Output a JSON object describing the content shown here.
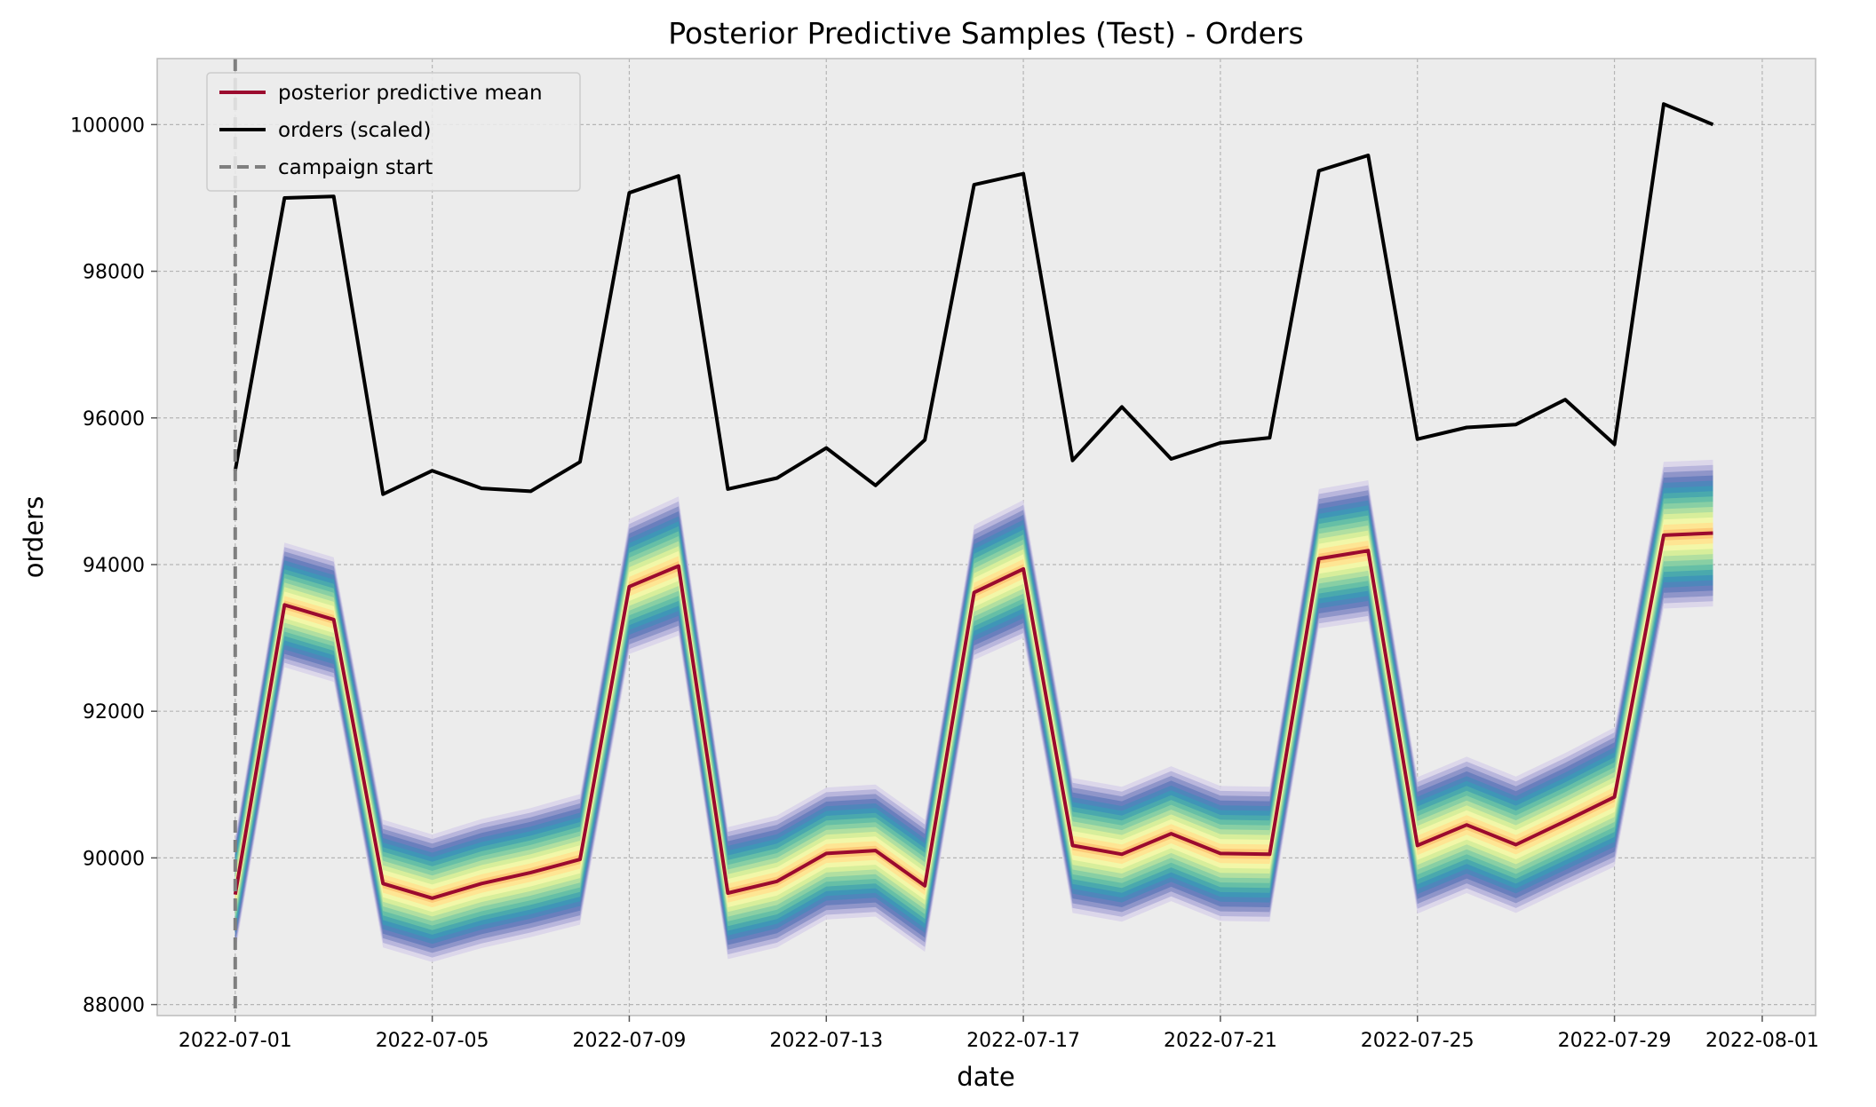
{
  "chart_data": {
    "type": "line",
    "title": "Posterior Predictive Samples (Test) - Orders",
    "xlabel": "date",
    "ylabel": "orders",
    "x_ticks": [
      "2022-07-01",
      "2022-07-05",
      "2022-07-09",
      "2022-07-13",
      "2022-07-17",
      "2022-07-21",
      "2022-07-25",
      "2022-07-29",
      "2022-08-01"
    ],
    "y_ticks": [
      "88000",
      "90000",
      "92000",
      "94000",
      "96000",
      "98000",
      "100000"
    ],
    "xlim": [
      "2022-06-29T10:00",
      "2022-08-02T02:00"
    ],
    "ylim": [
      87850,
      100900
    ],
    "grid": true,
    "legend_position": "top-left",
    "dates": [
      "2022-07-01",
      "2022-07-02",
      "2022-07-03",
      "2022-07-04",
      "2022-07-05",
      "2022-07-06",
      "2022-07-07",
      "2022-07-08",
      "2022-07-09",
      "2022-07-10",
      "2022-07-11",
      "2022-07-12",
      "2022-07-13",
      "2022-07-14",
      "2022-07-15",
      "2022-07-16",
      "2022-07-17",
      "2022-07-18",
      "2022-07-19",
      "2022-07-20",
      "2022-07-21",
      "2022-07-22",
      "2022-07-23",
      "2022-07-24",
      "2022-07-25",
      "2022-07-26",
      "2022-07-27",
      "2022-07-28",
      "2022-07-29",
      "2022-07-30",
      "2022-07-31"
    ],
    "series": [
      {
        "name": "posterior predictive mean",
        "color": "#9b0a2e",
        "values": [
          89500,
          93450,
          93250,
          89650,
          89450,
          89650,
          89800,
          89980,
          93700,
          93980,
          89520,
          89680,
          90060,
          90100,
          89620,
          93620,
          93940,
          90170,
          90050,
          90330,
          90060,
          90050,
          94080,
          94190,
          90170,
          90450,
          90180,
          90500,
          90830,
          94400,
          94430
        ]
      },
      {
        "name": "orders (scaled)",
        "color": "#000000",
        "values": [
          95280,
          99000,
          99020,
          94960,
          95280,
          95040,
          95000,
          95400,
          99070,
          99300,
          95030,
          95180,
          95590,
          95080,
          95700,
          99180,
          99330,
          95420,
          96150,
          95440,
          95660,
          95730,
          99370,
          99580,
          95710,
          95870,
          95910,
          96250,
          95640,
          100280,
          100000
        ]
      }
    ],
    "interval_half_width": [
      800,
      850,
      850,
      870,
      870,
      880,
      880,
      890,
      920,
      950,
      900,
      900,
      900,
      900,
      900,
      920,
      940,
      920,
      920,
      920,
      920,
      920,
      950,
      960,
      930,
      930,
      930,
      930,
      950,
      1000,
      1000
    ],
    "vertical_lines": [
      {
        "name": "campaign start",
        "x": "2022-07-01",
        "color": "#7f7f7f",
        "style": "dashed"
      }
    ],
    "legend": [
      {
        "label": "posterior predictive mean",
        "color": "#9b0a2e",
        "style": "solid"
      },
      {
        "label": "orders (scaled)",
        "color": "#000000",
        "style": "solid"
      },
      {
        "label": "campaign start",
        "color": "#7f7f7f",
        "style": "dashed"
      }
    ]
  }
}
